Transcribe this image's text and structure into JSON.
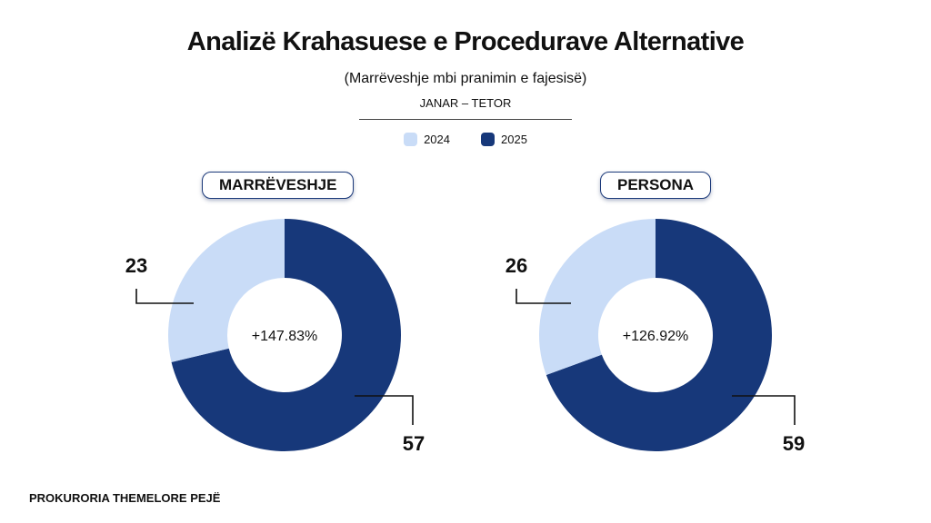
{
  "title": "Analizë Krahasuese e Procedurave Alternative",
  "subtitle": "(Marrëveshje mbi pranimin e fajesisë)",
  "period": "JANAR – TETOR",
  "legend": [
    {
      "label": "2024",
      "color": "#c9dcf7"
    },
    {
      "label": "2025",
      "color": "#17387a"
    }
  ],
  "footer": "PROKURORIA THEMELORE PEJË",
  "chart_data": [
    {
      "type": "pie",
      "title": "MARRËVESHJE",
      "categories": [
        "2024",
        "2025"
      ],
      "values": [
        23,
        57
      ],
      "value_labels": [
        "23",
        "57"
      ],
      "center_label": "+147.83%",
      "donut": true
    },
    {
      "type": "pie",
      "title": "PERSONA",
      "categories": [
        "2024",
        "2025"
      ],
      "values": [
        26,
        59
      ],
      "value_labels": [
        "26",
        "59"
      ],
      "center_label": "+126.92%",
      "donut": true
    }
  ]
}
